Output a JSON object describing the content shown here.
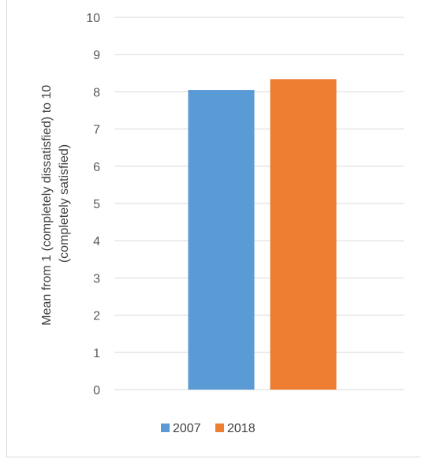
{
  "chart_data": {
    "type": "bar",
    "categories": [
      ""
    ],
    "series": [
      {
        "name": "2007",
        "values": [
          8.05
        ],
        "color": "#5B9BD5"
      },
      {
        "name": "2018",
        "values": [
          8.34
        ],
        "color": "#ED7D31"
      }
    ],
    "ylabel_lines": [
      "Mean from 1 (completely dissatisfied) to 10",
      "(completely satisfied)"
    ],
    "ylim": [
      0,
      10
    ],
    "yticks": [
      0,
      1,
      2,
      3,
      4,
      5,
      6,
      7,
      8,
      9,
      10
    ],
    "grid": true,
    "legend_position": "bottom"
  }
}
